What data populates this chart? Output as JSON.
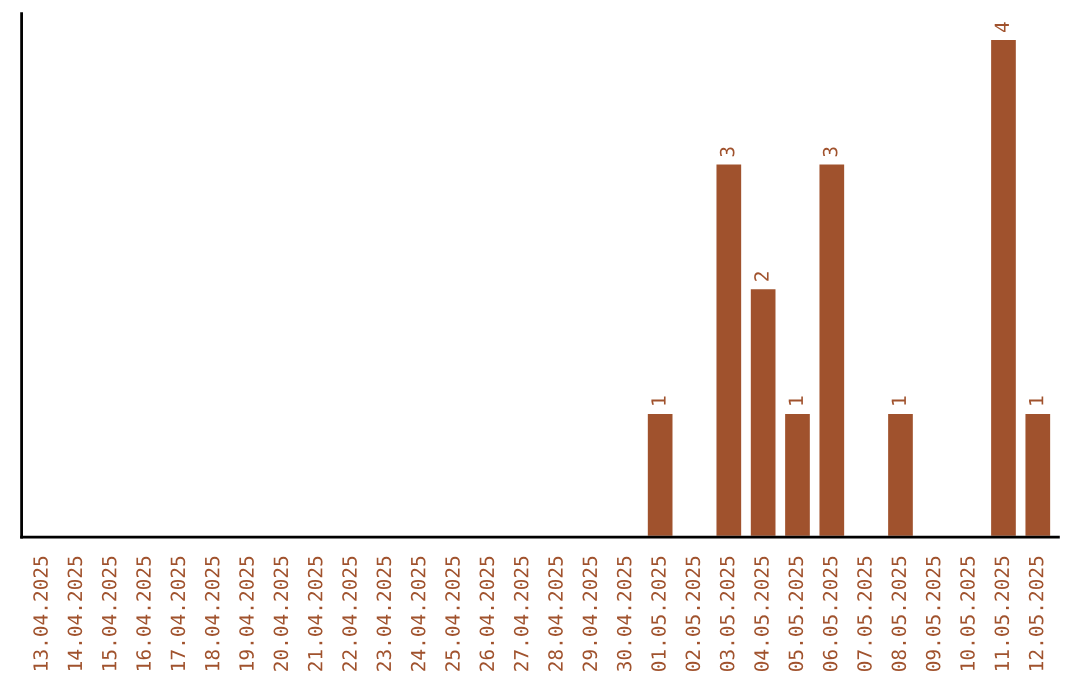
{
  "chart_data": {
    "type": "bar",
    "categories": [
      "13.04.2025",
      "14.04.2025",
      "15.04.2025",
      "16.04.2025",
      "17.04.2025",
      "18.04.2025",
      "19.04.2025",
      "20.04.2025",
      "21.04.2025",
      "22.04.2025",
      "23.04.2025",
      "24.04.2025",
      "25.04.2025",
      "26.04.2025",
      "27.04.2025",
      "28.04.2025",
      "29.04.2025",
      "30.04.2025",
      "01.05.2025",
      "02.05.2025",
      "03.05.2025",
      "04.05.2025",
      "05.05.2025",
      "06.05.2025",
      "07.05.2025",
      "08.05.2025",
      "09.05.2025",
      "10.05.2025",
      "11.05.2025",
      "12.05.2025"
    ],
    "values": [
      null,
      null,
      null,
      null,
      null,
      null,
      null,
      null,
      null,
      null,
      null,
      null,
      null,
      null,
      null,
      null,
      null,
      null,
      1,
      null,
      3,
      2,
      1,
      3,
      null,
      1,
      null,
      null,
      4,
      1
    ],
    "data_labels": true,
    "color": "#a0522d",
    "tick_labels": "x",
    "grid": false,
    "legend": false
  }
}
